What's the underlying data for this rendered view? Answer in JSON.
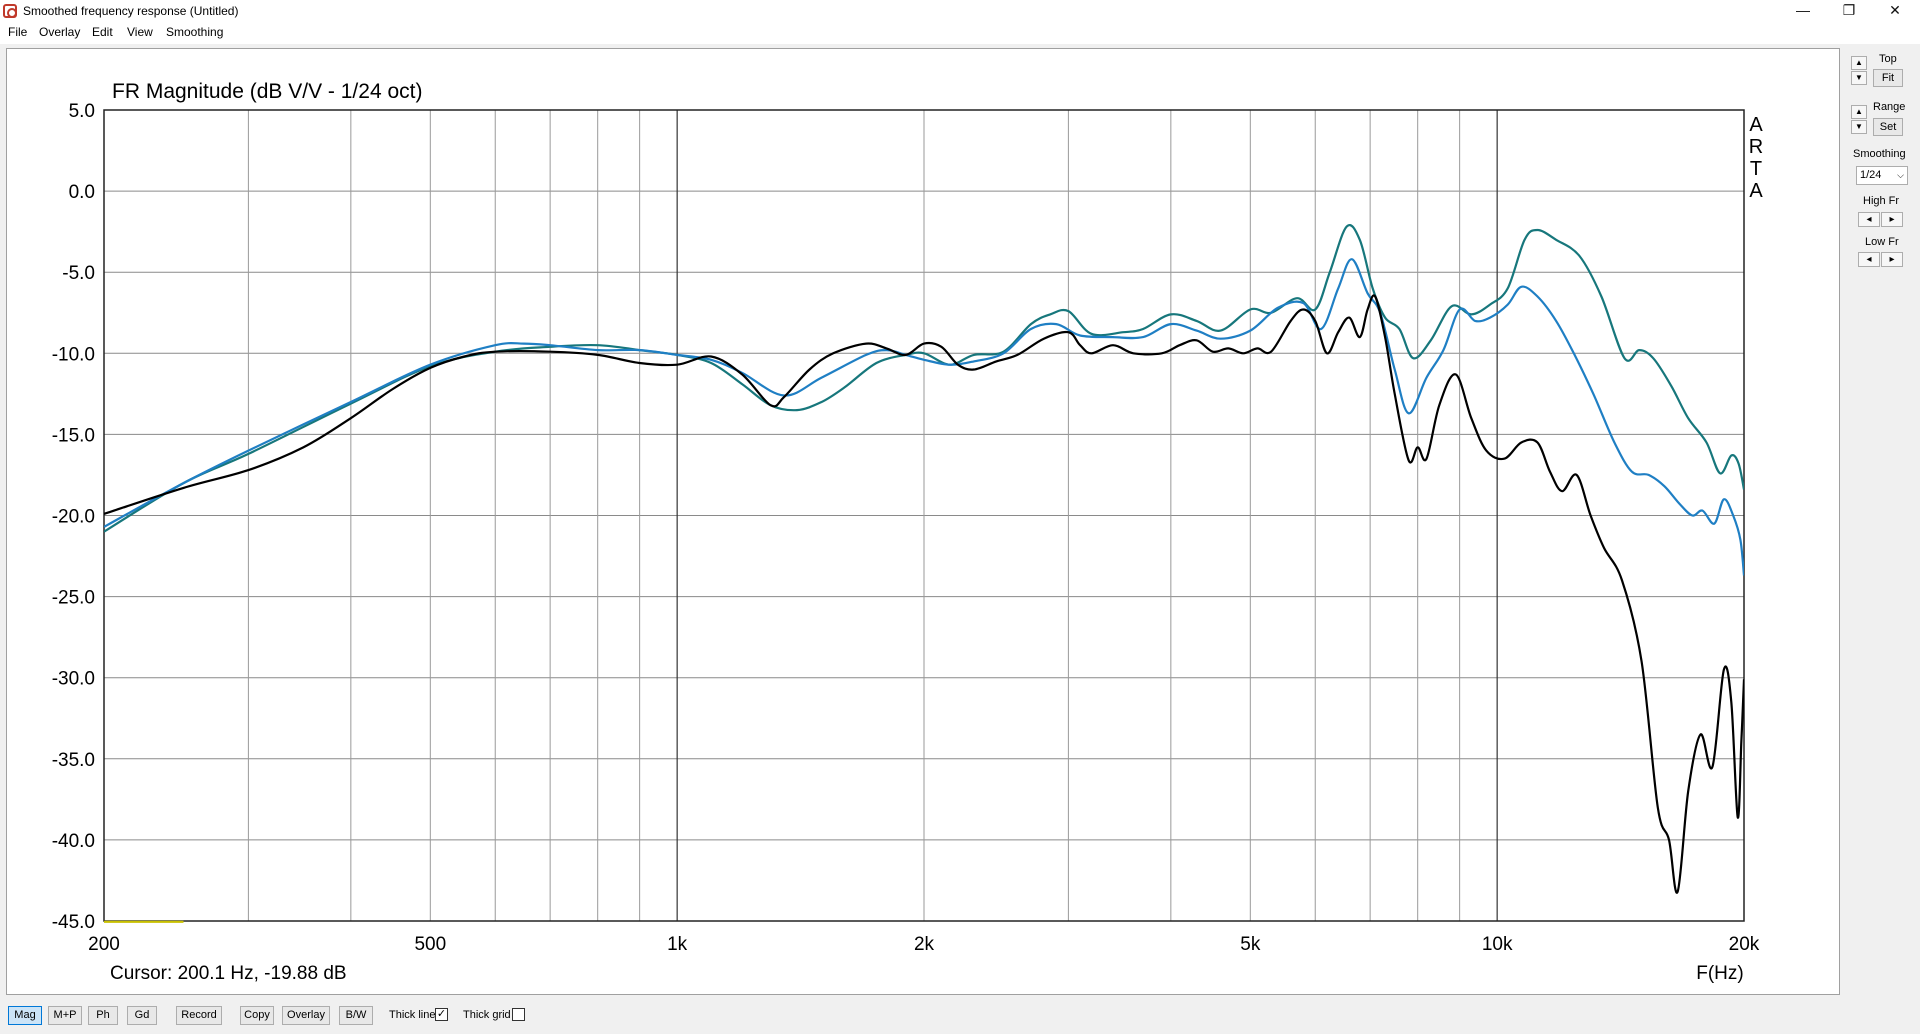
{
  "window": {
    "title": "Smoothed frequency response (Untitled)",
    "minimize": "—",
    "restore": "❐",
    "close": "✕"
  },
  "menu": [
    "File",
    "Overlay",
    "Edit",
    "View",
    "Smoothing"
  ],
  "chart_data": {
    "type": "line",
    "title": "FR Magnitude (dB V/V - 1/24 oct)",
    "xlabel": "F(Hz)",
    "ylabel": "",
    "x_scale": "log",
    "xlim": [
      200,
      20000
    ],
    "ylim": [
      -45,
      5
    ],
    "grid": true,
    "y_ticks": [
      "5.0",
      "0.0",
      "-5.0",
      "-10.0",
      "-15.0",
      "-20.0",
      "-25.0",
      "-30.0",
      "-35.0",
      "-40.0",
      "-45.0"
    ],
    "x_ticks": [
      {
        "value": 200,
        "label": "200"
      },
      {
        "value": 500,
        "label": "500"
      },
      {
        "value": 1000,
        "label": "1k"
      },
      {
        "value": 2000,
        "label": "2k"
      },
      {
        "value": 5000,
        "label": "5k"
      },
      {
        "value": 10000,
        "label": "10k"
      },
      {
        "value": 20000,
        "label": "20k"
      }
    ],
    "watermark": [
      "A",
      "R",
      "T",
      "A"
    ],
    "cursor_text": "Cursor: 200.1 Hz, -19.88 dB",
    "series": [
      {
        "color": "#000000",
        "points": [
          [
            200,
            -19.9
          ],
          [
            250,
            -18.3
          ],
          [
            300,
            -17.2
          ],
          [
            350,
            -15.8
          ],
          [
            400,
            -14
          ],
          [
            450,
            -12.2
          ],
          [
            500,
            -10.9
          ],
          [
            550,
            -10.2
          ],
          [
            600,
            -9.9
          ],
          [
            700,
            -9.9
          ],
          [
            800,
            -10.1
          ],
          [
            900,
            -10.6
          ],
          [
            1000,
            -10.7
          ],
          [
            1100,
            -10.2
          ],
          [
            1200,
            -11.3
          ],
          [
            1300,
            -13.2
          ],
          [
            1350,
            -12.7
          ],
          [
            1450,
            -11
          ],
          [
            1550,
            -10
          ],
          [
            1700,
            -9.4
          ],
          [
            1800,
            -9.7
          ],
          [
            1900,
            -10.1
          ],
          [
            2000,
            -9.4
          ],
          [
            2100,
            -9.6
          ],
          [
            2200,
            -10.7
          ],
          [
            2300,
            -11
          ],
          [
            2450,
            -10.5
          ],
          [
            2600,
            -10.1
          ],
          [
            2800,
            -9.1
          ],
          [
            3000,
            -8.7
          ],
          [
            3100,
            -9.5
          ],
          [
            3200,
            -10
          ],
          [
            3400,
            -9.5
          ],
          [
            3600,
            -10
          ],
          [
            3900,
            -10
          ],
          [
            4100,
            -9.5
          ],
          [
            4300,
            -9.2
          ],
          [
            4500,
            -9.9
          ],
          [
            4700,
            -9.7
          ],
          [
            4900,
            -10
          ],
          [
            5100,
            -9.7
          ],
          [
            5300,
            -9.9
          ],
          [
            5600,
            -8
          ],
          [
            5800,
            -7.3
          ],
          [
            6000,
            -8
          ],
          [
            6200,
            -10
          ],
          [
            6400,
            -8.7
          ],
          [
            6600,
            -7.8
          ],
          [
            6800,
            -9
          ],
          [
            6950,
            -7.3
          ],
          [
            7100,
            -6.5
          ],
          [
            7300,
            -9
          ],
          [
            7500,
            -12.5
          ],
          [
            7800,
            -16.6
          ],
          [
            8000,
            -15.8
          ],
          [
            8200,
            -16.5
          ],
          [
            8500,
            -13.2
          ],
          [
            8900,
            -11.3
          ],
          [
            9300,
            -14
          ],
          [
            9700,
            -16
          ],
          [
            10200,
            -16.5
          ],
          [
            10700,
            -15.5
          ],
          [
            11200,
            -15.5
          ],
          [
            11600,
            -17.3
          ],
          [
            12000,
            -18.5
          ],
          [
            12500,
            -17.5
          ],
          [
            13000,
            -20
          ],
          [
            13500,
            -22
          ],
          [
            14200,
            -24
          ],
          [
            15000,
            -29
          ],
          [
            15700,
            -38
          ],
          [
            16200,
            -40
          ],
          [
            16600,
            -43.2
          ],
          [
            17100,
            -37
          ],
          [
            17700,
            -33.5
          ],
          [
            18300,
            -35.5
          ],
          [
            18900,
            -29.5
          ],
          [
            19300,
            -31.5
          ],
          [
            19650,
            -38.6
          ],
          [
            19850,
            -34
          ],
          [
            20000,
            -30.1
          ]
        ]
      },
      {
        "color": "#1f7fc4",
        "points": [
          [
            200,
            -20.7
          ],
          [
            250,
            -18
          ],
          [
            300,
            -16
          ],
          [
            400,
            -13
          ],
          [
            500,
            -10.7
          ],
          [
            600,
            -9.5
          ],
          [
            650,
            -9.4
          ],
          [
            700,
            -9.5
          ],
          [
            800,
            -9.8
          ],
          [
            900,
            -9.8
          ],
          [
            1000,
            -10.1
          ],
          [
            1100,
            -10.4
          ],
          [
            1200,
            -11.2
          ],
          [
            1350,
            -12.6
          ],
          [
            1500,
            -11.5
          ],
          [
            1700,
            -10.1
          ],
          [
            1800,
            -9.8
          ],
          [
            1900,
            -10.1
          ],
          [
            2000,
            -10.4
          ],
          [
            2150,
            -10.7
          ],
          [
            2300,
            -10.5
          ],
          [
            2500,
            -10
          ],
          [
            2700,
            -8.5
          ],
          [
            2900,
            -8.2
          ],
          [
            3100,
            -8.9
          ],
          [
            3400,
            -9
          ],
          [
            3700,
            -9
          ],
          [
            4000,
            -8.2
          ],
          [
            4300,
            -8.6
          ],
          [
            4600,
            -9.1
          ],
          [
            5000,
            -8.6
          ],
          [
            5400,
            -7.2
          ],
          [
            5800,
            -6.9
          ],
          [
            6100,
            -8.5
          ],
          [
            6400,
            -6
          ],
          [
            6650,
            -4.2
          ],
          [
            6950,
            -6.3
          ],
          [
            7200,
            -7.5
          ],
          [
            7500,
            -11
          ],
          [
            7800,
            -13.7
          ],
          [
            8200,
            -11.5
          ],
          [
            8600,
            -9.8
          ],
          [
            9000,
            -7.3
          ],
          [
            9400,
            -8
          ],
          [
            9800,
            -7.8
          ],
          [
            10300,
            -7
          ],
          [
            10700,
            -5.9
          ],
          [
            11200,
            -6.5
          ],
          [
            11800,
            -8
          ],
          [
            12400,
            -10
          ],
          [
            13100,
            -12.5
          ],
          [
            13900,
            -15.5
          ],
          [
            14600,
            -17.3
          ],
          [
            15300,
            -17.5
          ],
          [
            16000,
            -18.2
          ],
          [
            16700,
            -19.3
          ],
          [
            17300,
            -20
          ],
          [
            17800,
            -19.7
          ],
          [
            18400,
            -20.5
          ],
          [
            18900,
            -19
          ],
          [
            19400,
            -20
          ],
          [
            19800,
            -21.5
          ],
          [
            20000,
            -23.7
          ]
        ]
      },
      {
        "color": "#17777c",
        "points": [
          [
            200,
            -21
          ],
          [
            250,
            -18
          ],
          [
            300,
            -16.2
          ],
          [
            400,
            -13.1
          ],
          [
            500,
            -10.8
          ],
          [
            600,
            -9.9
          ],
          [
            700,
            -9.6
          ],
          [
            800,
            -9.5
          ],
          [
            900,
            -9.8
          ],
          [
            1000,
            -10.1
          ],
          [
            1100,
            -10.6
          ],
          [
            1200,
            -11.9
          ],
          [
            1300,
            -13.2
          ],
          [
            1400,
            -13.5
          ],
          [
            1500,
            -13
          ],
          [
            1600,
            -12.1
          ],
          [
            1750,
            -10.6
          ],
          [
            1900,
            -10.1
          ],
          [
            2000,
            -10
          ],
          [
            2150,
            -10.7
          ],
          [
            2300,
            -10.1
          ],
          [
            2500,
            -9.9
          ],
          [
            2700,
            -8.2
          ],
          [
            2850,
            -7.6
          ],
          [
            3000,
            -7.4
          ],
          [
            3200,
            -8.8
          ],
          [
            3500,
            -8.7
          ],
          [
            3700,
            -8.5
          ],
          [
            4000,
            -7.6
          ],
          [
            4300,
            -8
          ],
          [
            4600,
            -8.6
          ],
          [
            5000,
            -7.3
          ],
          [
            5300,
            -7.5
          ],
          [
            5700,
            -6.6
          ],
          [
            6000,
            -7.3
          ],
          [
            6250,
            -5
          ],
          [
            6550,
            -2.2
          ],
          [
            6800,
            -3
          ],
          [
            7050,
            -6
          ],
          [
            7300,
            -7.8
          ],
          [
            7600,
            -8.5
          ],
          [
            7900,
            -10.3
          ],
          [
            8300,
            -9.2
          ],
          [
            8800,
            -7.1
          ],
          [
            9300,
            -7.6
          ],
          [
            9800,
            -7
          ],
          [
            10300,
            -6
          ],
          [
            10800,
            -3
          ],
          [
            11200,
            -2.4
          ],
          [
            11800,
            -3
          ],
          [
            12600,
            -4
          ],
          [
            13400,
            -6.5
          ],
          [
            14300,
            -10.3
          ],
          [
            14900,
            -9.8
          ],
          [
            15500,
            -10.3
          ],
          [
            16300,
            -12
          ],
          [
            17100,
            -14
          ],
          [
            18000,
            -15.5
          ],
          [
            18700,
            -17.4
          ],
          [
            19300,
            -16.3
          ],
          [
            19700,
            -16.8
          ],
          [
            20000,
            -18.4
          ]
        ]
      },
      {
        "color": "#c8c000",
        "points": [
          [
            200,
            -45.05
          ],
          [
            250,
            -45.05
          ]
        ]
      }
    ]
  },
  "right_panel": {
    "top_label": "Top",
    "fit_label": "Fit",
    "range_label": "Range",
    "set_label": "Set",
    "smoothing_label": "Smoothing",
    "smoothing_value": "1/24",
    "high_fr_label": "High Fr",
    "low_fr_label": "Low Fr"
  },
  "bottom_bar": {
    "buttons": [
      "Mag",
      "M+P",
      "Ph",
      "Gd",
      "Record",
      "Copy",
      "Overlay",
      "B/W"
    ],
    "thick_line_label": "Thick line",
    "thick_line_checked": "✓",
    "thick_grid_label": "Thick grid",
    "thick_grid_checked": ""
  }
}
